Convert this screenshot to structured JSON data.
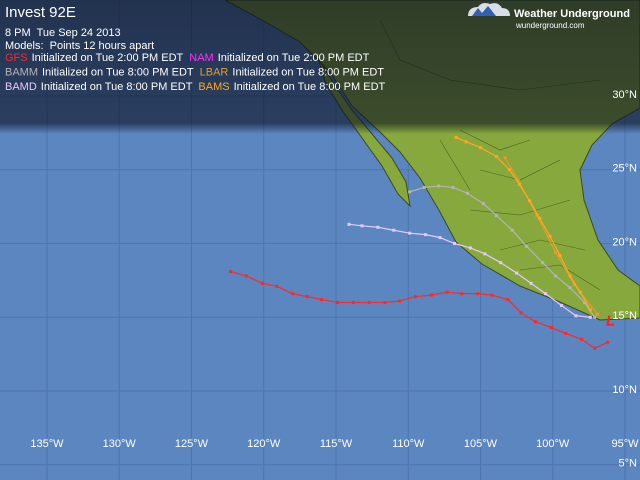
{
  "header": {
    "title": "Invest 92E",
    "time": "8 PM  Tue Sep 24 2013",
    "models_label": "Models:  Points 12 hours apart"
  },
  "logo": {
    "name": "Weather Underground",
    "url": "wunderground.com"
  },
  "map": {
    "lat_lines": [
      {
        "value": 30,
        "label": "30°N"
      },
      {
        "value": 25,
        "label": "25°N"
      },
      {
        "value": 20,
        "label": "20°N"
      },
      {
        "value": 15,
        "label": "15°N"
      },
      {
        "value": 10,
        "label": "10°N"
      },
      {
        "value": 5,
        "label": "5°N"
      }
    ],
    "lon_lines": [
      {
        "value": -135,
        "label": "135°W"
      },
      {
        "value": -130,
        "label": "130°W"
      },
      {
        "value": -125,
        "label": "125°W"
      },
      {
        "value": -120,
        "label": "120°W"
      },
      {
        "value": -115,
        "label": "115°W"
      },
      {
        "value": -110,
        "label": "110°W"
      },
      {
        "value": -105,
        "label": "105°W"
      },
      {
        "value": -100,
        "label": "100°W"
      },
      {
        "value": -95,
        "label": "95°W"
      }
    ],
    "storm": {
      "label": "L",
      "lon": -96.0,
      "lat": 14.7
    },
    "models": [
      {
        "name": "GFS",
        "color": "#ff2828",
        "initialized": "Initialized on Tue 2:00 PM EDT",
        "lon": [
          -122.3,
          -121.2,
          -120.1,
          -119.1,
          -118.0,
          -117.0,
          -116.0,
          -114.9,
          -113.8,
          -112.7,
          -111.6,
          -110.6,
          -109.5,
          -108.4,
          -107.3,
          -106.3,
          -105.2,
          -104.2,
          -103.1,
          -102.2,
          -101.2,
          -100.1,
          -99.1,
          -98.0,
          -97.1,
          -96.2
        ],
        "lat": [
          18.1,
          17.8,
          17.3,
          17.1,
          16.6,
          16.4,
          16.2,
          16.0,
          16.0,
          16.0,
          16.0,
          16.1,
          16.4,
          16.5,
          16.7,
          16.6,
          16.6,
          16.5,
          16.2,
          15.3,
          14.7,
          14.3,
          13.9,
          13.5,
          12.9,
          13.3
        ]
      },
      {
        "name": "NAM",
        "color": "#ff30ff",
        "initialized": "Initialized on Tue 2:00 PM EDT"
      },
      {
        "name": "BAMM",
        "color": "#b4b4b4",
        "initialized": "Initialized on Tue 8:00 PM EDT",
        "lon": [
          -97.1,
          -97.8,
          -98.8,
          -99.8,
          -100.7,
          -101.8,
          -102.8,
          -103.9,
          -104.8,
          -105.9,
          -106.9,
          -107.9,
          -108.9,
          -109.9
        ],
        "lat": [
          15.0,
          16.0,
          17.0,
          17.8,
          18.7,
          19.8,
          20.9,
          21.9,
          22.7,
          23.4,
          23.8,
          23.9,
          23.8,
          23.5
        ]
      },
      {
        "name": "LBAR",
        "color": "#e89a30",
        "initialized": "Initialized on Tue 8:00 PM EDT",
        "lon": [
          -96.9,
          -98.5,
          -99.8,
          -101.1,
          -102.4,
          -103.3
        ],
        "lat": [
          15.2,
          17.2,
          19.4,
          21.9,
          24.3,
          25.8
        ]
      },
      {
        "name": "BAMD",
        "color": "#e8c8ff",
        "initialized": "Initialized on Tue 8:00 PM EDT",
        "lon": [
          -114.1,
          -113.2,
          -112.1,
          -111.0,
          -109.9,
          -108.8,
          -107.8,
          -106.8,
          -105.7,
          -104.7,
          -103.6,
          -102.5,
          -101.5,
          -100.5,
          -99.4,
          -98.4,
          -97.4
        ],
        "lat": [
          21.3,
          21.2,
          21.1,
          20.9,
          20.7,
          20.6,
          20.4,
          20.0,
          19.7,
          19.3,
          18.7,
          18.0,
          17.3,
          16.6,
          15.8,
          15.1,
          15.0
        ]
      },
      {
        "name": "BAMS",
        "color": "#ffa820",
        "initialized": "Initialized on Tue 8:00 PM EDT",
        "lon": [
          -97.4,
          -98.1,
          -98.8,
          -99.5,
          -100.2,
          -100.9,
          -101.6,
          -102.3,
          -103.0,
          -103.9,
          -105.0,
          -106.0,
          -106.7
        ],
        "lat": [
          15.5,
          16.7,
          17.8,
          19.2,
          20.5,
          21.7,
          22.9,
          24.0,
          25.0,
          25.9,
          26.5,
          26.9,
          27.2
        ]
      }
    ]
  }
}
